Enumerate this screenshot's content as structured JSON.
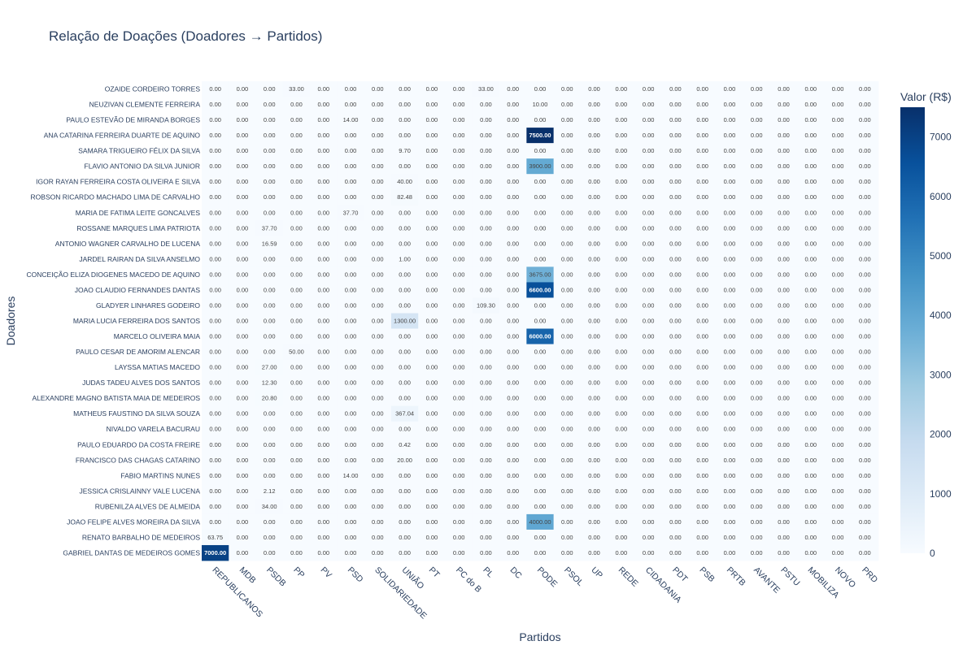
{
  "chart_data": {
    "type": "heatmap",
    "title": "Relação de Doações (Doadores → Partidos)",
    "xlabel": "Partidos",
    "ylabel": "Doadores",
    "colorbar_title": "Valor (R$)",
    "colorbar_ticks": [
      0,
      1000,
      2000,
      3000,
      4000,
      5000,
      6000,
      7000
    ],
    "zrange": [
      0,
      7500
    ],
    "colorscale": "Blues",
    "x": [
      "REPUBLICANOS",
      "MDB",
      "PSDB",
      "PP",
      "PV",
      "PSD",
      "SOLIDARIEDADE",
      "UNIÃO",
      "PT",
      "PC do B",
      "PL",
      "DC",
      "PODE",
      "PSOL",
      "UP",
      "REDE",
      "CIDADANIA",
      "PDT",
      "PSB",
      "PRTB",
      "AVANTE",
      "PSTU",
      "MOBILIZA",
      "NOVO",
      "PRD"
    ],
    "y": [
      "OZAIDE CORDEIRO TORRES",
      "NEUZIVAN CLEMENTE FERREIRA",
      "PAULO ESTEVÃO DE MIRANDA BORGES",
      "ANA CATARINA FERREIRA DUARTE DE AQUINO",
      "SAMARA TRIGUEIRO FÉLIX DA SILVA",
      "FLAVIO ANTONIO DA SILVA JUNIOR",
      "IGOR RAYAN FERREIRA COSTA OLIVEIRA E SILVA",
      "ROBSON RICARDO MACHADO LIMA DE CARVALHO",
      "MARIA DE FATIMA LEITE GONCALVES",
      "ROSSANE MARQUES LIMA PATRIOTA",
      "ANTONIO WAGNER CARVALHO DE LUCENA",
      "JARDEL RAIRAN DA SILVA ANSELMO",
      "CONCEIÇÃO ELIZA DIOGENES MACEDO DE AQUINO",
      "JOAO CLAUDIO FERNANDES DANTAS",
      "GLADYER LINHARES GODEIRO",
      "MARIA LUCIA FERREIRA DOS SANTOS",
      "MARCELO OLIVEIRA MAIA",
      "PAULO CESAR DE AMORIM ALENCAR",
      "LAYSSA MATIAS MACEDO",
      "JUDAS TADEU ALVES DOS SANTOS",
      "ALEXANDRE MAGNO BATISTA MAIA DE MEDEIROS",
      "MATHEUS FAUSTINO DA SILVA SOUZA",
      "NIVALDO VARELA BACURAU",
      "PAULO EDUARDO DA COSTA FREIRE",
      "FRANCISCO DAS CHAGAS CATARINO",
      "FABIO MARTINS NUNES",
      "JESSICA CRISLAINNY VALE LUCENA",
      "RUBENILZA ALVES DE ALMEIDA",
      "JOAO FELIPE ALVES MOREIRA DA SILVA",
      "RENATO BARBALHO DE MEDEIROS",
      "GABRIEL DANTAS DE MEDEIROS GOMES"
    ],
    "nonzero": [
      {
        "row": "OZAIDE CORDEIRO TORRES",
        "col": "PP",
        "value": 33.0
      },
      {
        "row": "OZAIDE CORDEIRO TORRES",
        "col": "PL",
        "value": 33.0
      },
      {
        "row": "NEUZIVAN CLEMENTE FERREIRA",
        "col": "PODE",
        "value": 10.0
      },
      {
        "row": "PAULO ESTEVÃO DE MIRANDA BORGES",
        "col": "PSD",
        "value": 14.0
      },
      {
        "row": "ANA CATARINA FERREIRA DUARTE DE AQUINO",
        "col": "PODE",
        "value": 7500.0
      },
      {
        "row": "SAMARA TRIGUEIRO FÉLIX DA SILVA",
        "col": "UNIÃO",
        "value": 9.7
      },
      {
        "row": "FLAVIO ANTONIO DA SILVA JUNIOR",
        "col": "PODE",
        "value": 3900.0
      },
      {
        "row": "IGOR RAYAN FERREIRA COSTA OLIVEIRA E SILVA",
        "col": "UNIÃO",
        "value": 40.0
      },
      {
        "row": "ROBSON RICARDO MACHADO LIMA DE CARVALHO",
        "col": "UNIÃO",
        "value": 82.48
      },
      {
        "row": "MARIA DE FATIMA LEITE GONCALVES",
        "col": "PSD",
        "value": 37.7
      },
      {
        "row": "ROSSANE MARQUES LIMA PATRIOTA",
        "col": "PSDB",
        "value": 37.7
      },
      {
        "row": "ANTONIO WAGNER CARVALHO DE LUCENA",
        "col": "PSDB",
        "value": 16.59
      },
      {
        "row": "JARDEL RAIRAN DA SILVA ANSELMO",
        "col": "UNIÃO",
        "value": 1.0
      },
      {
        "row": "CONCEIÇÃO ELIZA DIOGENES MACEDO DE AQUINO",
        "col": "PODE",
        "value": 3675.0
      },
      {
        "row": "JOAO CLAUDIO FERNANDES DANTAS",
        "col": "PODE",
        "value": 6600.0
      },
      {
        "row": "GLADYER LINHARES GODEIRO",
        "col": "PL",
        "value": 109.3
      },
      {
        "row": "MARIA LUCIA FERREIRA DOS SANTOS",
        "col": "UNIÃO",
        "value": 1300.0
      },
      {
        "row": "MARCELO OLIVEIRA MAIA",
        "col": "PODE",
        "value": 6000.0
      },
      {
        "row": "PAULO CESAR DE AMORIM ALENCAR",
        "col": "PP",
        "value": 50.0
      },
      {
        "row": "LAYSSA MATIAS MACEDO",
        "col": "PSDB",
        "value": 27.0
      },
      {
        "row": "JUDAS TADEU ALVES DOS SANTOS",
        "col": "PSDB",
        "value": 12.3
      },
      {
        "row": "ALEXANDRE MAGNO BATISTA MAIA DE MEDEIROS",
        "col": "PSDB",
        "value": 20.8
      },
      {
        "row": "MATHEUS FAUSTINO DA SILVA SOUZA",
        "col": "UNIÃO",
        "value": 367.04
      },
      {
        "row": "PAULO EDUARDO DA COSTA FREIRE",
        "col": "UNIÃO",
        "value": 0.42
      },
      {
        "row": "FRANCISCO DAS CHAGAS CATARINO",
        "col": "UNIÃO",
        "value": 20.0
      },
      {
        "row": "FABIO MARTINS NUNES",
        "col": "PSD",
        "value": 14.0
      },
      {
        "row": "JESSICA CRISLAINNY VALE LUCENA",
        "col": "PSDB",
        "value": 2.12
      },
      {
        "row": "RUBENILZA ALVES DE ALMEIDA",
        "col": "PSDB",
        "value": 34.0
      },
      {
        "row": "JOAO FELIPE ALVES MOREIRA DA SILVA",
        "col": "PODE",
        "value": 4000.0
      },
      {
        "row": "RENATO BARBALHO DE MEDEIROS",
        "col": "REPUBLICANOS",
        "value": 63.75
      },
      {
        "row": "GABRIEL DANTAS DE MEDEIROS GOMES",
        "col": "REPUBLICANOS",
        "value": 7000.0
      }
    ],
    "default_value": 0.0,
    "grid": false,
    "legend": "colorbar-right"
  }
}
